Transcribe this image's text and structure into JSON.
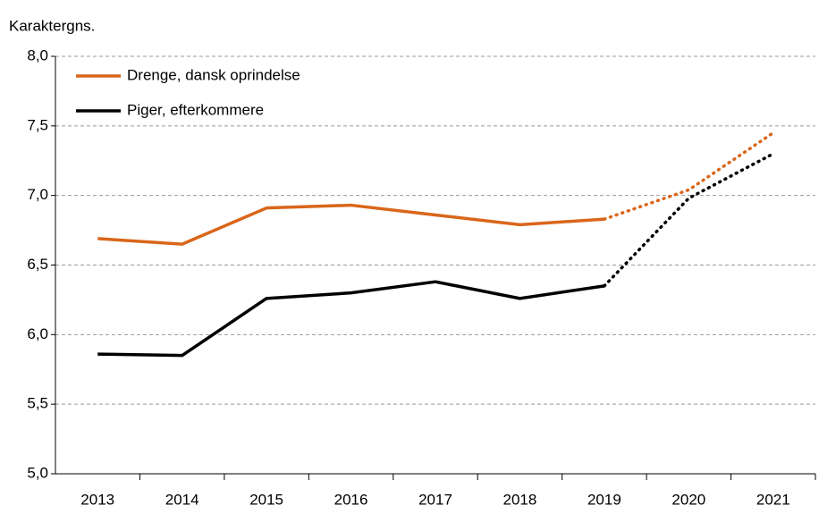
{
  "chart_data": {
    "type": "line",
    "y_label": "Karaktergns.",
    "categories": [
      "2013",
      "2014",
      "2015",
      "2016",
      "2017",
      "2018",
      "2019",
      "2020",
      "2021"
    ],
    "series": [
      {
        "name": "Drenge, dansk oprindelse",
        "color": "#d9661a",
        "values": [
          6.69,
          6.65,
          6.91,
          6.93,
          6.86,
          6.79,
          6.83,
          7.04,
          7.45
        ]
      },
      {
        "name": "Piger, efterkommere",
        "color": "#000000",
        "values": [
          5.86,
          5.85,
          6.26,
          6.3,
          6.38,
          6.26,
          6.35,
          6.98,
          7.3
        ]
      }
    ],
    "dotted_from": 6,
    "ylim": [
      5,
      8
    ],
    "yticks": [
      {
        "value": 5,
        "label": "5,0"
      },
      {
        "value": 5.5,
        "label": "5,5"
      },
      {
        "value": 6,
        "label": "6,0"
      },
      {
        "value": 6.5,
        "label": "6,5"
      },
      {
        "value": 7,
        "label": "7,0"
      },
      {
        "value": 7.5,
        "label": "7,5"
      },
      {
        "value": 8,
        "label": "8,0"
      }
    ],
    "grid": true,
    "legend": "upper left"
  }
}
